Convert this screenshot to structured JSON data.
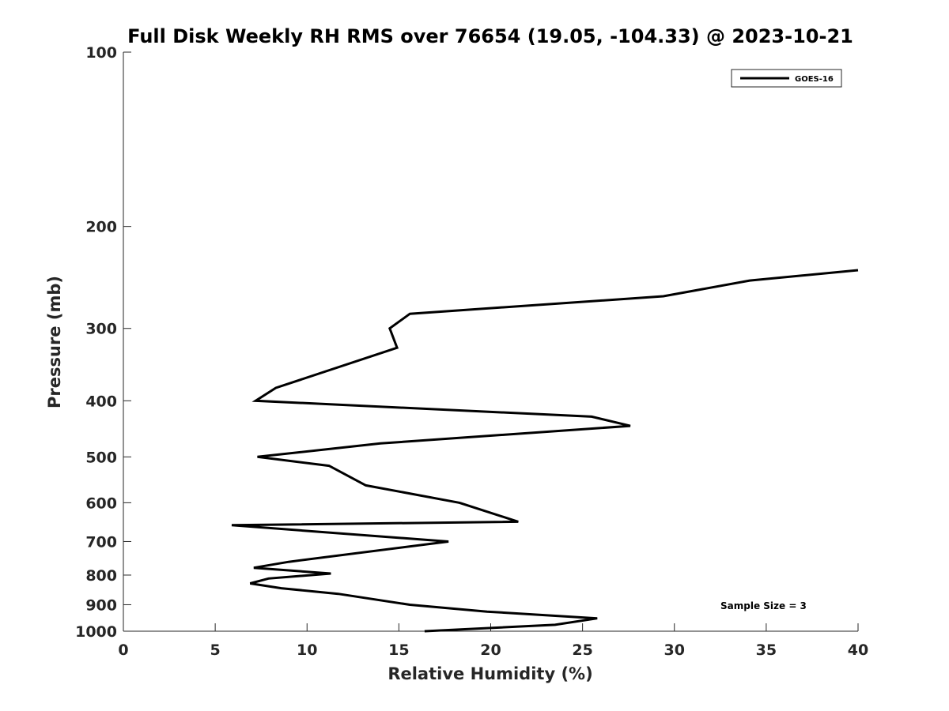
{
  "chart_data": {
    "type": "line",
    "title": "Full Disk Weekly RH RMS over 76654 (19.05, -104.33) @ 2023-10-21",
    "xlabel": "Relative Humidity (%)",
    "ylabel": "Pressure (mb)",
    "xlim": [
      0,
      40
    ],
    "ylim": [
      1000,
      100
    ],
    "y_scale": "log",
    "x_ticks": [
      "0",
      "5",
      "10",
      "15",
      "20",
      "25",
      "30",
      "35",
      "40"
    ],
    "y_ticks": [
      "100",
      "200",
      "300",
      "400",
      "500",
      "600",
      "700",
      "800",
      "900",
      "1000"
    ],
    "grid": false,
    "legend": {
      "position": "top-right",
      "entries": [
        "GOES-16"
      ]
    },
    "annotation": "Sample Size = 3",
    "series": [
      {
        "name": "GOES-16",
        "color": "#000000",
        "points": [
          [
            16.4,
            1000
          ],
          [
            23.5,
            975
          ],
          [
            25.8,
            950
          ],
          [
            19.8,
            925
          ],
          [
            15.6,
            900
          ],
          [
            11.7,
            862
          ],
          [
            8.6,
            843
          ],
          [
            6.9,
            827
          ],
          [
            7.9,
            811
          ],
          [
            11.3,
            795
          ],
          [
            7.1,
            777
          ],
          [
            9.0,
            759
          ],
          [
            17.7,
            700
          ],
          [
            5.9,
            656
          ],
          [
            21.5,
            647
          ],
          [
            18.3,
            600
          ],
          [
            13.2,
            560
          ],
          [
            11.2,
            518
          ],
          [
            7.3,
            500
          ],
          [
            14.0,
            474
          ],
          [
            27.6,
            442
          ],
          [
            25.5,
            426
          ],
          [
            7.2,
            400
          ],
          [
            8.3,
            380
          ],
          [
            14.9,
            324
          ],
          [
            14.5,
            300
          ],
          [
            15.6,
            283
          ],
          [
            29.4,
            264
          ],
          [
            34.1,
            248
          ],
          [
            40.0,
            238
          ]
        ]
      }
    ]
  }
}
